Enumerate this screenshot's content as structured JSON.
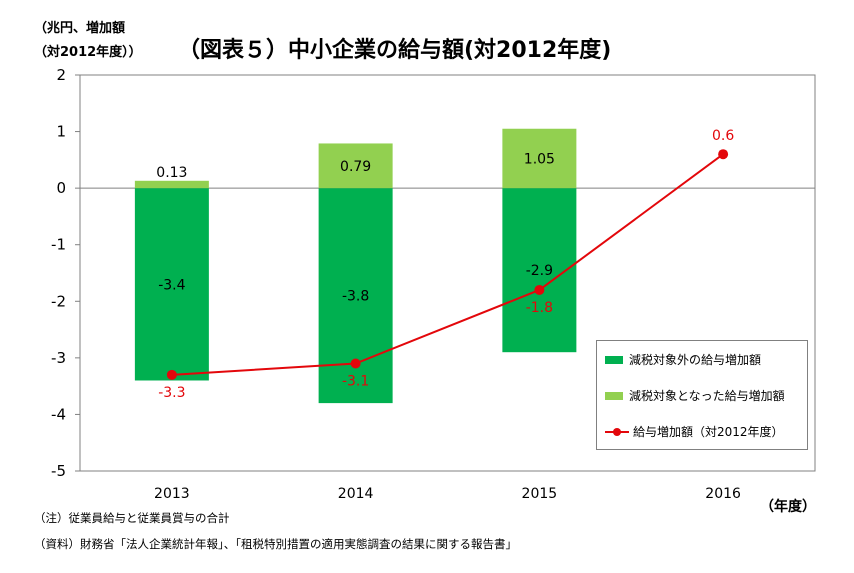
{
  "header": {
    "unit_line1": "（兆円、増加額",
    "unit_line2": "（対2012年度））",
    "title": "（図表５）中小企業の給与額(対2012年度)"
  },
  "x_unit": "（年度）",
  "notes": {
    "note1": "（注）従業員給与と従業員賞与の合計",
    "note2": "（資料）財務省「法人企業統計年報」、「租税特別措置の適用実態調査の結果に関する報告書」"
  },
  "colors": {
    "dark_green": "#00b050",
    "light_green": "#92d050",
    "red": "#e3070b",
    "frame": "#808080"
  },
  "chart_data": {
    "type": "bar",
    "title": "（図表５）中小企業の給与額(対2012年度)",
    "categories": [
      "2013",
      "2014",
      "2015",
      "2016"
    ],
    "ylim": [
      -5,
      2
    ],
    "yticks": [
      "2",
      "1",
      "0",
      "-1",
      "-2",
      "-3",
      "-4",
      "-5"
    ],
    "grid": false,
    "legend_position": "bottom-right",
    "series": [
      {
        "name": "減税対象外の給与増加額",
        "type": "bar",
        "color": "#00b050",
        "values": [
          -3.4,
          -3.8,
          -2.9,
          null
        ],
        "labels": [
          "-3.4",
          "-3.8",
          "-2.9",
          ""
        ]
      },
      {
        "name": "減税対象となった給与増加額",
        "type": "bar",
        "color": "#92d050",
        "values": [
          0.13,
          0.79,
          1.05,
          null
        ],
        "labels": [
          "0.13",
          "0.79",
          "1.05",
          ""
        ]
      },
      {
        "name": "給与増加額（対2012年度）",
        "type": "line",
        "color": "#e3070b",
        "values": [
          -3.3,
          -3.1,
          -1.8,
          0.6
        ],
        "labels": [
          "-3.3",
          "-3.1",
          "-1.8",
          "0.6"
        ]
      }
    ]
  }
}
